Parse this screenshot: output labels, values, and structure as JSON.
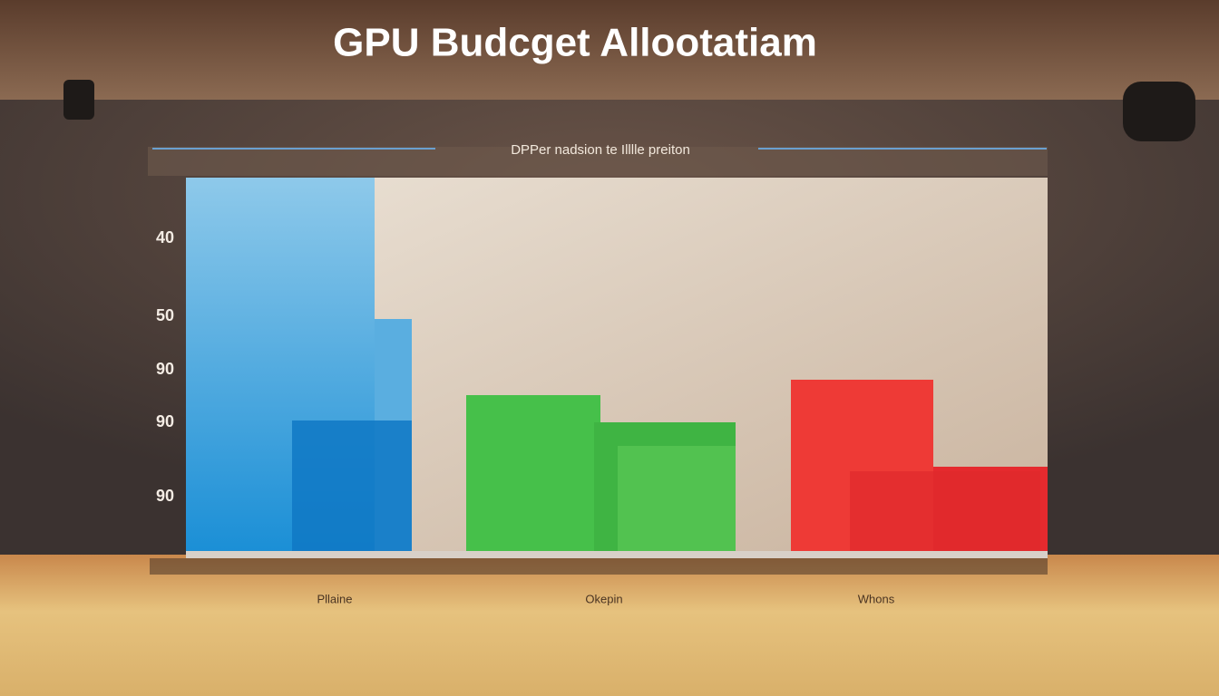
{
  "header": {
    "title": "GPU Budcget Allootatiam",
    "subtitle": "DPPer nadsion te Illlle preiton"
  },
  "axis_labels": [
    "40",
    "50",
    "90",
    "90",
    "90"
  ],
  "category_labels": [
    "Pllaine",
    "Okepin",
    "Whons"
  ]
}
